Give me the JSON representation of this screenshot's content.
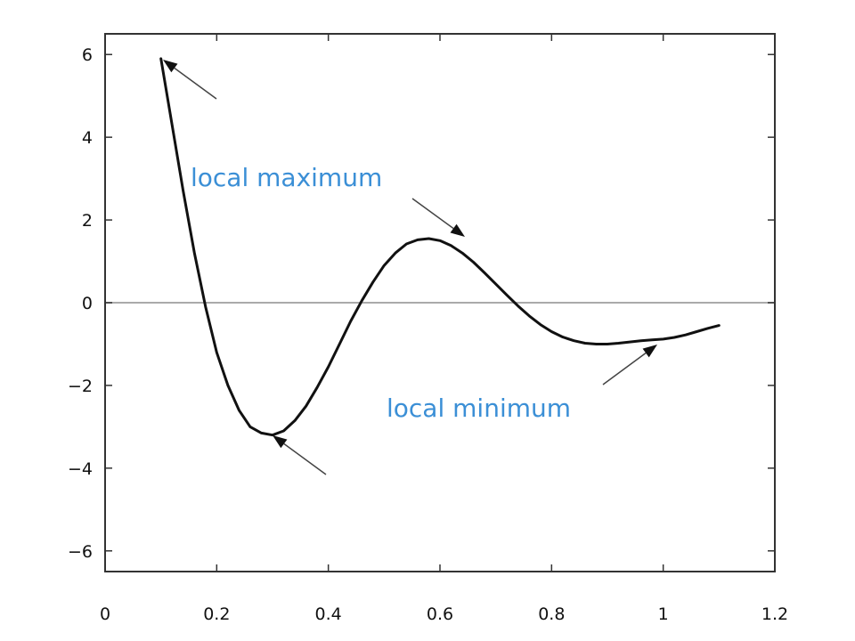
{
  "chart_data": {
    "type": "line",
    "title": "",
    "xlabel": "",
    "ylabel": "",
    "xlim": [
      0,
      1.2
    ],
    "ylim": [
      -6.5,
      6.5
    ],
    "x_ticks": [
      0,
      0.2,
      0.4,
      0.6,
      0.8,
      1,
      1.2
    ],
    "x_tick_labels": [
      "0",
      "0.2",
      "0.4",
      "0.6",
      "0.8",
      "1",
      "1.2"
    ],
    "y_ticks": [
      6,
      4,
      2,
      0,
      -2,
      -4,
      -6
    ],
    "y_tick_labels": [
      "6",
      "4",
      "2",
      "0",
      "−2",
      "−4",
      "−6"
    ],
    "grid": false,
    "zero_line": true,
    "series": [
      {
        "color": "#111111",
        "x": [
          0.1,
          0.12,
          0.14,
          0.16,
          0.18,
          0.2,
          0.22,
          0.24,
          0.26,
          0.28,
          0.3,
          0.32,
          0.34,
          0.36,
          0.38,
          0.4,
          0.42,
          0.44,
          0.46,
          0.48,
          0.5,
          0.52,
          0.54,
          0.56,
          0.58,
          0.6,
          0.62,
          0.64,
          0.66,
          0.68,
          0.7,
          0.72,
          0.74,
          0.76,
          0.78,
          0.8,
          0.82,
          0.84,
          0.86,
          0.88,
          0.9,
          0.92,
          0.94,
          0.96,
          0.98,
          1.0,
          1.02,
          1.04,
          1.06,
          1.08,
          1.1
        ],
        "y": [
          5.9,
          4.3,
          2.7,
          1.2,
          -0.1,
          -1.2,
          -2.0,
          -2.6,
          -3.0,
          -3.15,
          -3.2,
          -3.1,
          -2.85,
          -2.5,
          -2.05,
          -1.55,
          -1.0,
          -0.45,
          0.05,
          0.5,
          0.9,
          1.2,
          1.42,
          1.52,
          1.55,
          1.5,
          1.38,
          1.2,
          0.98,
          0.72,
          0.45,
          0.18,
          -0.08,
          -0.32,
          -0.53,
          -0.7,
          -0.83,
          -0.92,
          -0.98,
          -1.0,
          -1.0,
          -0.98,
          -0.95,
          -0.92,
          -0.9,
          -0.88,
          -0.84,
          -0.78,
          -0.7,
          -0.62,
          -0.55
        ]
      }
    ],
    "annotations": [
      {
        "text": "local maximum"
      },
      {
        "text": "local minimum"
      }
    ],
    "colors": {
      "curve": "#111111",
      "axis": "#333333",
      "zero_line": "#aaaaaa",
      "annotation": "#3b8fd6",
      "arrow": "#444444"
    }
  }
}
